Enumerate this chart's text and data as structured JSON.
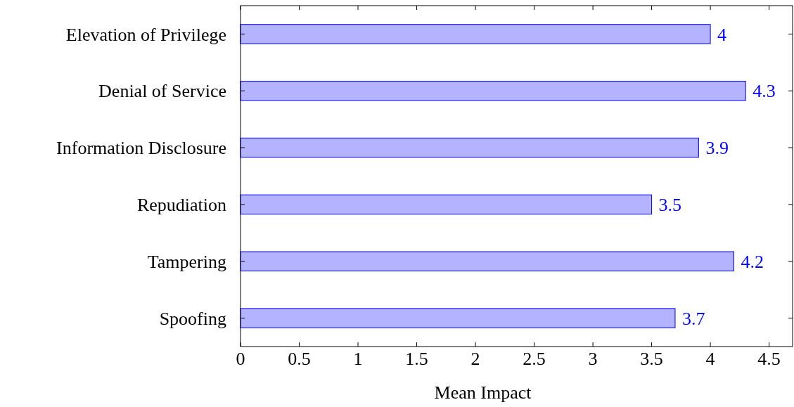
{
  "chart_data": {
    "type": "bar",
    "orientation": "horizontal",
    "xlabel": "Mean Impact",
    "categories": [
      "Elevation of Privilege",
      "Denial of Service",
      "Information Disclosure",
      "Repudiation",
      "Tampering",
      "Spoofing"
    ],
    "values": [
      4,
      4.3,
      3.9,
      3.5,
      4.2,
      3.7
    ],
    "color": "#b3b3ff",
    "xlim": [
      0,
      4.7
    ],
    "xticks": [
      0,
      0.5,
      1,
      1.5,
      2,
      2.5,
      3,
      3.5,
      4,
      4.5
    ],
    "data_labels": true,
    "grid": false
  }
}
